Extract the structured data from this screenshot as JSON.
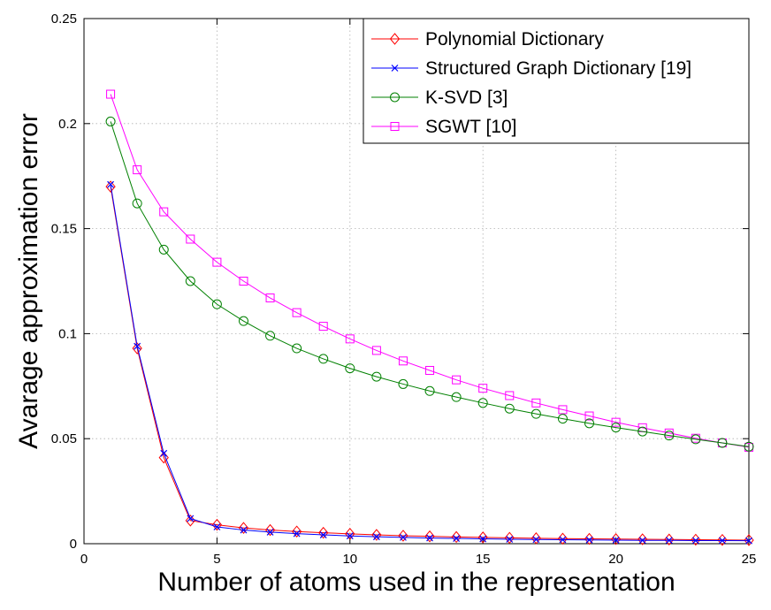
{
  "chart_data": {
    "type": "line",
    "title": "",
    "xlabel": "Number of atoms used in the representation",
    "ylabel": "Avarage approximation error",
    "xlim": [
      0,
      25
    ],
    "ylim": [
      0,
      0.25
    ],
    "xticks": [
      "0",
      "5",
      "10",
      "15",
      "20",
      "25"
    ],
    "yticks": [
      "0",
      "0.05",
      "0.1",
      "0.15",
      "0.2",
      "0.25"
    ],
    "grid": true,
    "legend_position": "top-right",
    "x": [
      1,
      2,
      3,
      4,
      5,
      6,
      7,
      8,
      9,
      10,
      11,
      12,
      13,
      14,
      15,
      16,
      17,
      18,
      19,
      20,
      21,
      22,
      23,
      24,
      25
    ],
    "series": [
      {
        "name": "Polynomial Dictionary",
        "color": "#ff0000",
        "marker": "diamond",
        "values": [
          0.17,
          0.093,
          0.041,
          0.011,
          0.009,
          0.0075,
          0.0065,
          0.0058,
          0.0052,
          0.0047,
          0.0042,
          0.0038,
          0.0035,
          0.0032,
          0.003,
          0.0028,
          0.0026,
          0.0024,
          0.0023,
          0.0022,
          0.0021,
          0.002,
          0.0019,
          0.0018,
          0.0017
        ]
      },
      {
        "name": "Structured Graph Dictionary [19]",
        "color": "#0000ff",
        "marker": "x",
        "values": [
          0.171,
          0.094,
          0.043,
          0.012,
          0.008,
          0.0065,
          0.0055,
          0.0048,
          0.0042,
          0.0037,
          0.0033,
          0.003,
          0.0027,
          0.0025,
          0.0023,
          0.0021,
          0.002,
          0.0019,
          0.0018,
          0.0017,
          0.0016,
          0.0016,
          0.0015,
          0.0015,
          0.0014
        ]
      },
      {
        "name": "K-SVD [3]",
        "color": "#008000",
        "marker": "circle",
        "values": [
          0.201,
          0.162,
          0.14,
          0.125,
          0.114,
          0.106,
          0.099,
          0.093,
          0.088,
          0.0835,
          0.0795,
          0.076,
          0.0727,
          0.0698,
          0.067,
          0.0643,
          0.0618,
          0.0595,
          0.0573,
          0.0553,
          0.0534,
          0.0515,
          0.0497,
          0.048,
          0.0462
        ]
      },
      {
        "name": "SGWT [10]",
        "color": "#ff00ff",
        "marker": "square",
        "values": [
          0.214,
          0.178,
          0.158,
          0.145,
          0.134,
          0.125,
          0.117,
          0.11,
          0.1035,
          0.0975,
          0.092,
          0.087,
          0.0825,
          0.078,
          0.074,
          0.0705,
          0.067,
          0.0638,
          0.0608,
          0.0578,
          0.0552,
          0.0527,
          0.0502,
          0.048,
          0.0459
        ]
      }
    ]
  }
}
